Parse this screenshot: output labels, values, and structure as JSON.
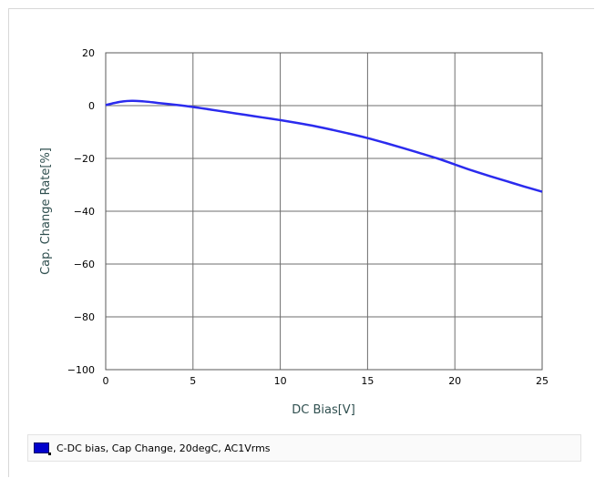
{
  "chart_data": {
    "type": "line",
    "title": "",
    "xlabel": "DC Bias[V]",
    "ylabel": "Cap. Change Rate[%]",
    "xlim": [
      0,
      25
    ],
    "ylim": [
      -100,
      20
    ],
    "x_ticks": [
      "0",
      "5",
      "10",
      "15",
      "20",
      "25"
    ],
    "y_ticks": [
      "20",
      "0",
      "-20",
      "-40",
      "-60",
      "-80",
      "-100"
    ],
    "grid": true,
    "legend_position": "bottom",
    "series": [
      {
        "name": "C-DC bias, Cap Change, 20degC, AC1Vrms",
        "color": "#2b2bee",
        "x": [
          0,
          0.5,
          1,
          1.5,
          2,
          2.5,
          3,
          4,
          5,
          6,
          7,
          8,
          9,
          10,
          11,
          12,
          13,
          14,
          15,
          16,
          17,
          18,
          19,
          20,
          21,
          22,
          23,
          24,
          25
        ],
        "y": [
          0.2,
          1.0,
          1.6,
          1.8,
          1.7,
          1.4,
          1.0,
          0.3,
          -0.5,
          -1.5,
          -2.5,
          -3.5,
          -4.5,
          -5.5,
          -6.6,
          -7.8,
          -9.2,
          -10.7,
          -12.3,
          -14.1,
          -16.0,
          -18.0,
          -20.0,
          -22.3,
          -24.6,
          -26.7,
          -28.7,
          -30.7,
          -32.6
        ]
      }
    ]
  },
  "legend": {
    "label": "C-DC bias, Cap Change, 20degC, AC1Vrms",
    "swatch_color": "#0000cc"
  }
}
